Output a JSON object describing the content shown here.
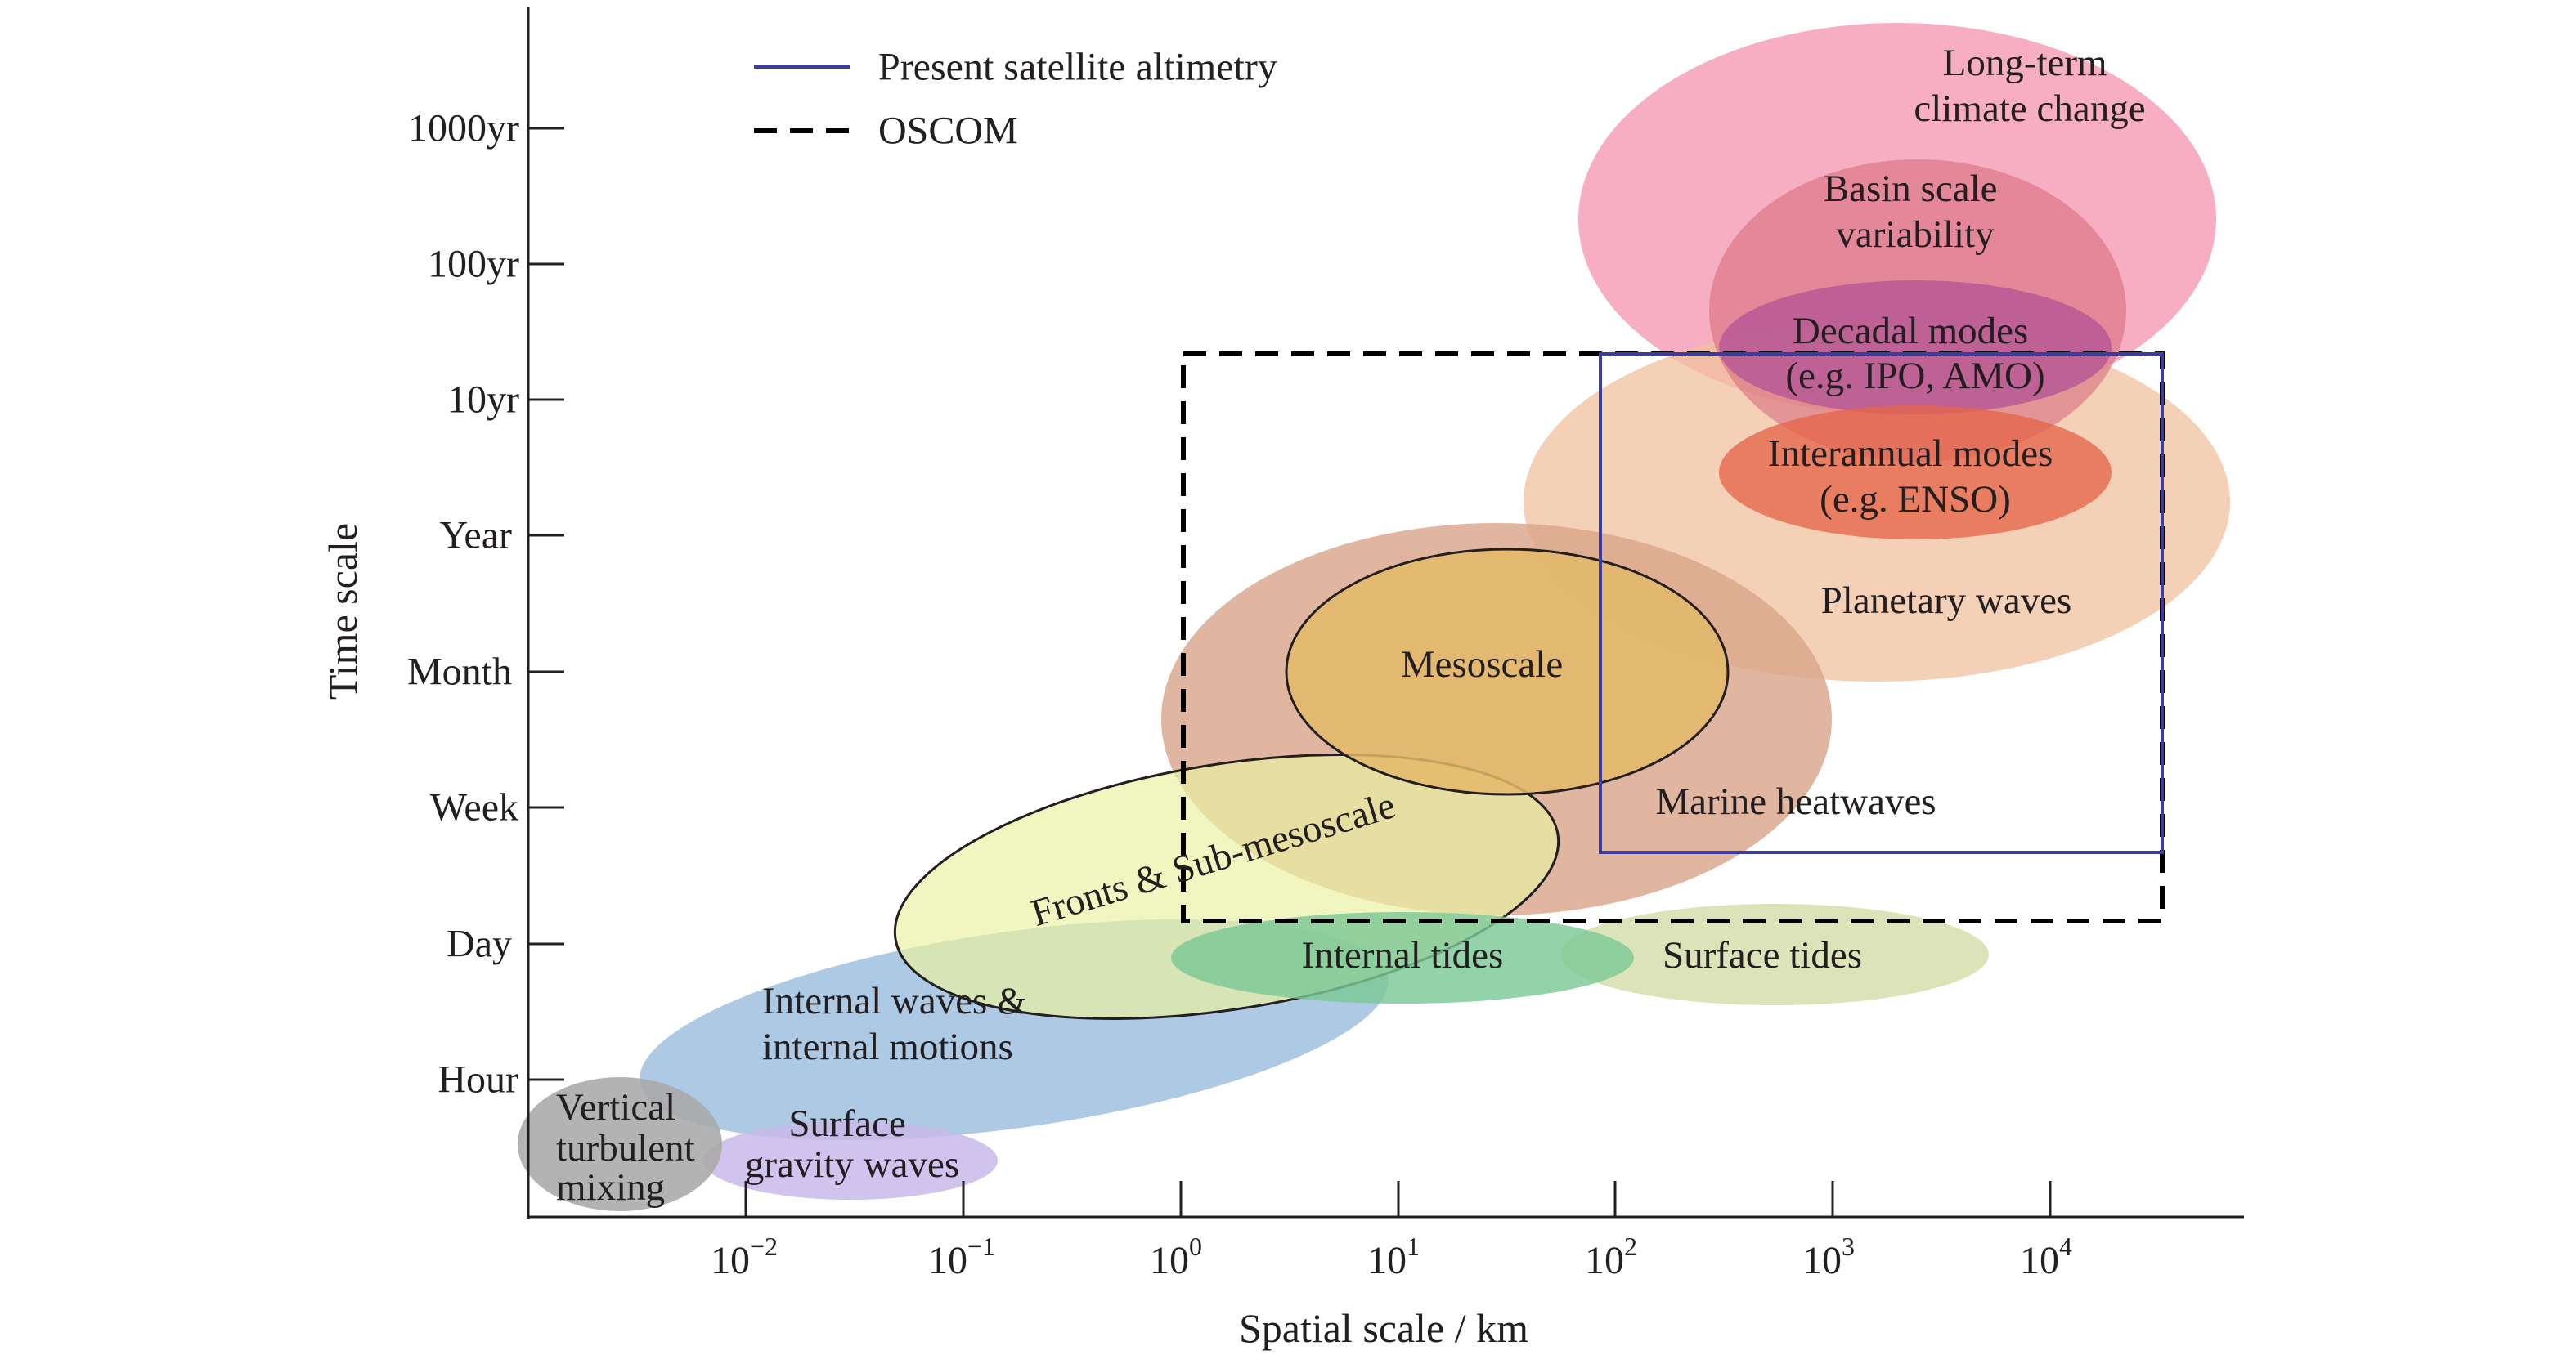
{
  "diagram": {
    "type": "scale-diagram",
    "x_axis": {
      "title": "Spatial scale / km",
      "ticks": [
        {
          "base": "10",
          "exp": "−2"
        },
        {
          "base": "10",
          "exp": "−1"
        },
        {
          "base": "10",
          "exp": "0"
        },
        {
          "base": "10",
          "exp": "1"
        },
        {
          "base": "10",
          "exp": "2"
        },
        {
          "base": "10",
          "exp": "3"
        },
        {
          "base": "10",
          "exp": "4"
        }
      ]
    },
    "y_axis": {
      "title": "Time scale",
      "ticks": [
        "1000yr",
        "100yr",
        "10yr",
        "Year",
        "Month",
        "Week",
        "Day",
        "Hour"
      ]
    },
    "legend": [
      {
        "label": "Present satellite altimetry",
        "style": "solid",
        "color": "#3c3c9e"
      },
      {
        "label": "OSCOM",
        "style": "dashed",
        "color": "#000000"
      }
    ],
    "regions": [
      {
        "id": "long-term-climate-change",
        "lines": [
          "Long-term",
          "climate change"
        ],
        "color": "#f48fab"
      },
      {
        "id": "planetary-waves",
        "lines": [
          "Planetary waves"
        ],
        "color": "#f0c09e"
      },
      {
        "id": "basin-scale-variability",
        "lines": [
          "Basin scale",
          "variability"
        ],
        "color": "#d9707f"
      },
      {
        "id": "decadal-modes",
        "lines": [
          "Decadal modes",
          "(e.g. IPO, AMO)"
        ],
        "color": "#b25396"
      },
      {
        "id": "interannual-modes",
        "lines": [
          "Interannual modes",
          "(e.g. ENSO)"
        ],
        "color": "#e4654a"
      },
      {
        "id": "marine-heatwaves",
        "lines": [
          "Marine heatwaves"
        ],
        "color": "#dca98a"
      },
      {
        "id": "mesoscale",
        "lines": [
          "Mesoscale"
        ],
        "color": "#e3b869"
      },
      {
        "id": "fronts-sub-mesoscale",
        "lines": [
          "Fronts & Sub-mesoscale"
        ],
        "color": "#eaf0a0"
      },
      {
        "id": "internal-tides",
        "lines": [
          "Internal tides"
        ],
        "color": "#7cc896"
      },
      {
        "id": "surface-tides",
        "lines": [
          "Surface tides"
        ],
        "color": "#d5dca8"
      },
      {
        "id": "internal-waves",
        "lines": [
          "Internal waves &",
          "internal motions"
        ],
        "color": "#9fbfdf"
      },
      {
        "id": "vertical-turbulent-mixing",
        "lines": [
          "Vertical",
          "turbulent",
          "mixing"
        ],
        "color": "#a9a9a9"
      },
      {
        "id": "surface-gravity-waves",
        "lines": [
          "Surface",
          "gravity waves"
        ],
        "color": "#c8b8ea"
      }
    ]
  }
}
